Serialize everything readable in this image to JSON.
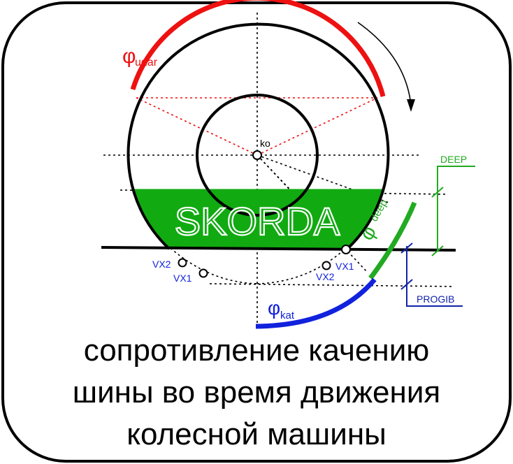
{
  "labels": {
    "phi_udar_symbol": "φ",
    "phi_udar_sub": "udar",
    "phi_deep_symbol": "φ",
    "phi_deep_sub": "deep",
    "phi_kat_symbol": "φ",
    "phi_kat_sub": "kat",
    "ko": "ko",
    "skorda": "SKORDA",
    "deep": "DEEP",
    "progib": "PROGIB",
    "vx2_left": "VX2",
    "vx1_left": "VX1",
    "vx1_right": "VX1",
    "vx2_right": "VX2"
  },
  "caption": {
    "line1": "сопротивление качению",
    "line2": "шины во время движения",
    "line3": "колесной машины"
  },
  "colors": {
    "udar": "#ee1111",
    "deep": "#22aa22",
    "kat": "#1122dd",
    "fill": "#11aa11",
    "progib": "#1122aa"
  }
}
